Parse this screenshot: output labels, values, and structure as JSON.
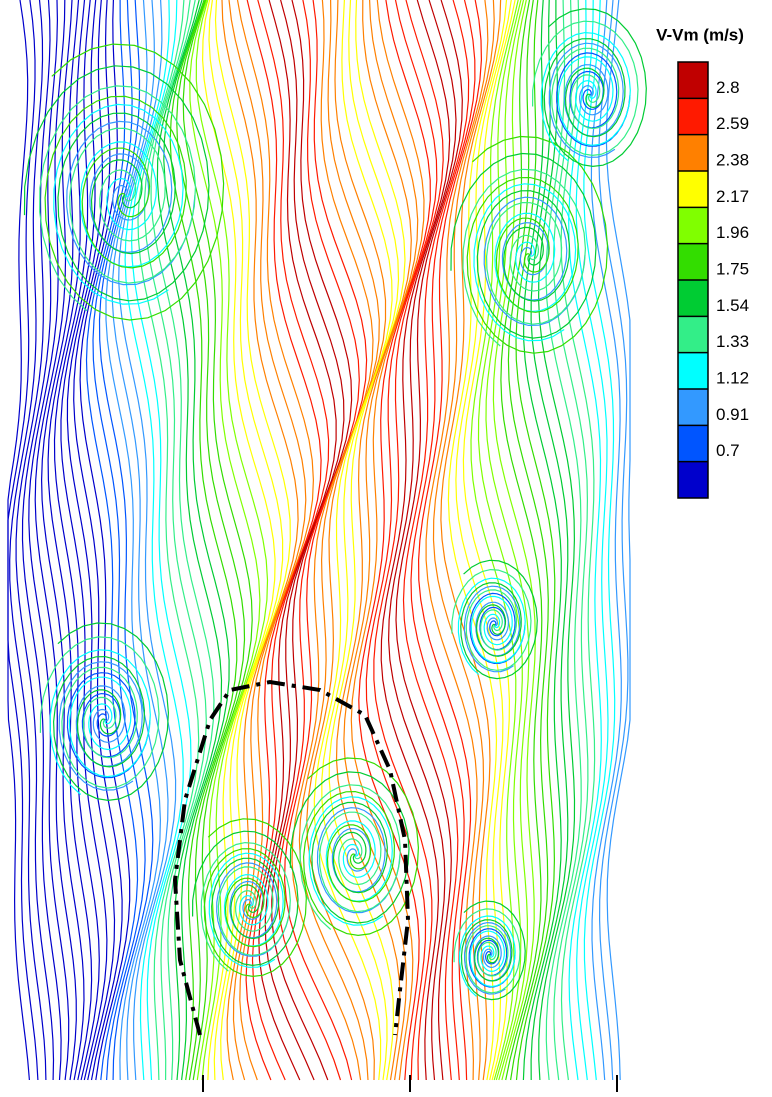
{
  "chart_data": {
    "type": "streamline",
    "title": "V-Vm (m/s)",
    "colorbar_ticks": [
      2.8,
      2.59,
      2.38,
      2.17,
      1.96,
      1.75,
      1.54,
      1.33,
      1.12,
      0.91,
      0.7
    ],
    "colorbar_lim": [
      0.49,
      3.01
    ],
    "colors": [
      "#c00000",
      "#ff1a00",
      "#ff8000",
      "#ffff00",
      "#80ff00",
      "#33dd00",
      "#00cc33",
      "#33ee88",
      "#00ffff",
      "#3399ff",
      "#0055ff",
      "#0000cc"
    ]
  }
}
